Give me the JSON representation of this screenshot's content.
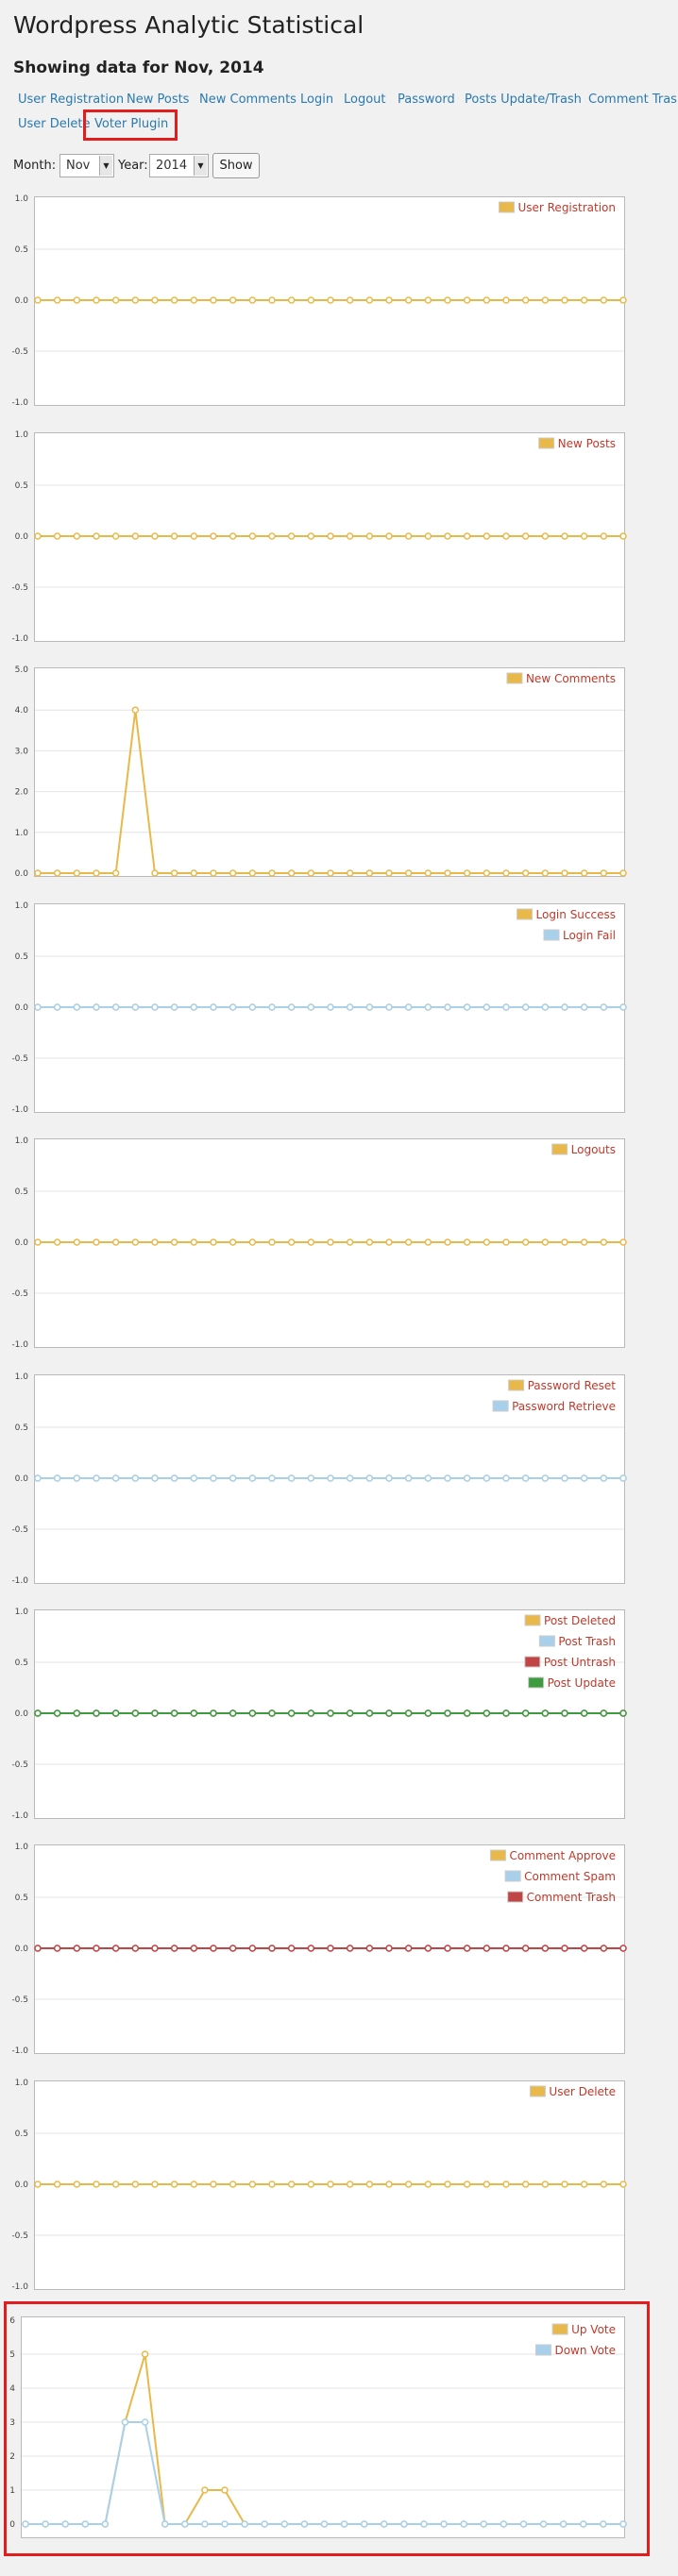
{
  "page": {
    "title": "Wordpress Analytic Statistical",
    "subtitle": "Showing data for Nov, 2014"
  },
  "nav": {
    "items": [
      {
        "label": "User Registration",
        "name": "nav-user-registration"
      },
      {
        "label": "New Posts",
        "name": "nav-new-posts"
      },
      {
        "label": "New Comments",
        "name": "nav-new-comments"
      },
      {
        "label": "Login",
        "name": "nav-login"
      },
      {
        "label": "Logout",
        "name": "nav-logout"
      },
      {
        "label": "Password",
        "name": "nav-password"
      },
      {
        "label": "Posts Update/Trash",
        "name": "nav-posts-update-trash"
      },
      {
        "label": "Comment Trash",
        "name": "nav-comment-trash"
      },
      {
        "label": "User Delete",
        "name": "nav-user-delete"
      },
      {
        "label": "Voter Plugin",
        "name": "nav-voter-plugin"
      }
    ]
  },
  "filter": {
    "month_label": "Month:",
    "month_value": "Nov",
    "year_label": "Year:",
    "year_value": "2014",
    "show_label": "Show"
  },
  "colors": {
    "yellow": "#e8b94a",
    "lightblue": "#a9d0ea",
    "red": "#c24545",
    "green": "#3f9b3f",
    "link": "#2a7ab0",
    "legend_text": "#c0392b",
    "highlight": "#e21d1d"
  },
  "chart_data": [
    {
      "type": "line",
      "yticks": [
        "1.0",
        "0.5",
        "0.0",
        "-0.5",
        "-1.0"
      ],
      "ylim": [
        -1,
        1
      ],
      "grid": true,
      "legend_position": "top-right",
      "series": [
        {
          "name": "User Registration",
          "color": "yellow",
          "values": [
            0,
            0,
            0,
            0,
            0,
            0,
            0,
            0,
            0,
            0,
            0,
            0,
            0,
            0,
            0,
            0,
            0,
            0,
            0,
            0,
            0,
            0,
            0,
            0,
            0,
            0,
            0,
            0,
            0,
            0,
            0
          ]
        }
      ]
    },
    {
      "type": "line",
      "yticks": [
        "1.0",
        "0.5",
        "0.0",
        "-0.5",
        "-1.0"
      ],
      "ylim": [
        -1,
        1
      ],
      "grid": true,
      "legend_position": "top-right",
      "series": [
        {
          "name": "New Posts",
          "color": "yellow",
          "values": [
            0,
            0,
            0,
            0,
            0,
            0,
            0,
            0,
            0,
            0,
            0,
            0,
            0,
            0,
            0,
            0,
            0,
            0,
            0,
            0,
            0,
            0,
            0,
            0,
            0,
            0,
            0,
            0,
            0,
            0,
            0
          ]
        }
      ]
    },
    {
      "type": "line",
      "yticks": [
        "5.0",
        "4.0",
        "3.0",
        "2.0",
        "1.0",
        "0.0"
      ],
      "ylim": [
        0,
        5
      ],
      "grid": true,
      "legend_position": "top-right",
      "series": [
        {
          "name": "New Comments",
          "color": "yellow",
          "values": [
            0,
            0,
            0,
            0,
            0,
            4,
            0,
            0,
            0,
            0,
            0,
            0,
            0,
            0,
            0,
            0,
            0,
            0,
            0,
            0,
            0,
            0,
            0,
            0,
            0,
            0,
            0,
            0,
            0,
            0,
            0
          ]
        }
      ]
    },
    {
      "type": "line",
      "yticks": [
        "1.0",
        "0.5",
        "0.0",
        "-0.5",
        "-1.0"
      ],
      "ylim": [
        -1,
        1
      ],
      "grid": true,
      "legend_position": "top-right",
      "series": [
        {
          "name": "Login Success",
          "color": "yellow",
          "values": [
            0,
            0,
            0,
            0,
            0,
            0,
            0,
            0,
            0,
            0,
            0,
            0,
            0,
            0,
            0,
            0,
            0,
            0,
            0,
            0,
            0,
            0,
            0,
            0,
            0,
            0,
            0,
            0,
            0,
            0,
            0
          ]
        },
        {
          "name": "Login Fail",
          "color": "lightblue",
          "values": [
            0,
            0,
            0,
            0,
            0,
            0,
            0,
            0,
            0,
            0,
            0,
            0,
            0,
            0,
            0,
            0,
            0,
            0,
            0,
            0,
            0,
            0,
            0,
            0,
            0,
            0,
            0,
            0,
            0,
            0,
            0
          ]
        }
      ]
    },
    {
      "type": "line",
      "yticks": [
        "1.0",
        "0.5",
        "0.0",
        "-0.5",
        "-1.0"
      ],
      "ylim": [
        -1,
        1
      ],
      "grid": true,
      "legend_position": "top-right",
      "series": [
        {
          "name": "Logouts",
          "color": "yellow",
          "values": [
            0,
            0,
            0,
            0,
            0,
            0,
            0,
            0,
            0,
            0,
            0,
            0,
            0,
            0,
            0,
            0,
            0,
            0,
            0,
            0,
            0,
            0,
            0,
            0,
            0,
            0,
            0,
            0,
            0,
            0,
            0
          ]
        }
      ]
    },
    {
      "type": "line",
      "yticks": [
        "1.0",
        "0.5",
        "0.0",
        "-0.5",
        "-1.0"
      ],
      "ylim": [
        -1,
        1
      ],
      "grid": true,
      "legend_position": "top-right",
      "series": [
        {
          "name": "Password Reset",
          "color": "yellow",
          "values": [
            0,
            0,
            0,
            0,
            0,
            0,
            0,
            0,
            0,
            0,
            0,
            0,
            0,
            0,
            0,
            0,
            0,
            0,
            0,
            0,
            0,
            0,
            0,
            0,
            0,
            0,
            0,
            0,
            0,
            0,
            0
          ]
        },
        {
          "name": "Password Retrieve",
          "color": "lightblue",
          "values": [
            0,
            0,
            0,
            0,
            0,
            0,
            0,
            0,
            0,
            0,
            0,
            0,
            0,
            0,
            0,
            0,
            0,
            0,
            0,
            0,
            0,
            0,
            0,
            0,
            0,
            0,
            0,
            0,
            0,
            0,
            0
          ]
        }
      ]
    },
    {
      "type": "line",
      "yticks": [
        "1.0",
        "0.5",
        "0.0",
        "-0.5",
        "-1.0"
      ],
      "ylim": [
        -1,
        1
      ],
      "grid": true,
      "legend_position": "top-right",
      "series": [
        {
          "name": "Post Deleted",
          "color": "yellow",
          "values": [
            0,
            0,
            0,
            0,
            0,
            0,
            0,
            0,
            0,
            0,
            0,
            0,
            0,
            0,
            0,
            0,
            0,
            0,
            0,
            0,
            0,
            0,
            0,
            0,
            0,
            0,
            0,
            0,
            0,
            0,
            0
          ]
        },
        {
          "name": "Post Trash",
          "color": "lightblue",
          "values": [
            0,
            0,
            0,
            0,
            0,
            0,
            0,
            0,
            0,
            0,
            0,
            0,
            0,
            0,
            0,
            0,
            0,
            0,
            0,
            0,
            0,
            0,
            0,
            0,
            0,
            0,
            0,
            0,
            0,
            0,
            0
          ]
        },
        {
          "name": "Post Untrash",
          "color": "red",
          "values": [
            0,
            0,
            0,
            0,
            0,
            0,
            0,
            0,
            0,
            0,
            0,
            0,
            0,
            0,
            0,
            0,
            0,
            0,
            0,
            0,
            0,
            0,
            0,
            0,
            0,
            0,
            0,
            0,
            0,
            0,
            0
          ]
        },
        {
          "name": "Post Update",
          "color": "green",
          "values": [
            0,
            0,
            0,
            0,
            0,
            0,
            0,
            0,
            0,
            0,
            0,
            0,
            0,
            0,
            0,
            0,
            0,
            0,
            0,
            0,
            0,
            0,
            0,
            0,
            0,
            0,
            0,
            0,
            0,
            0,
            0
          ]
        }
      ]
    },
    {
      "type": "line",
      "yticks": [
        "1.0",
        "0.5",
        "0.0",
        "-0.5",
        "-1.0"
      ],
      "ylim": [
        -1,
        1
      ],
      "grid": true,
      "legend_position": "top-right",
      "series": [
        {
          "name": "Comment Approve",
          "color": "yellow",
          "values": [
            0,
            0,
            0,
            0,
            0,
            0,
            0,
            0,
            0,
            0,
            0,
            0,
            0,
            0,
            0,
            0,
            0,
            0,
            0,
            0,
            0,
            0,
            0,
            0,
            0,
            0,
            0,
            0,
            0,
            0,
            0
          ]
        },
        {
          "name": "Comment Spam",
          "color": "lightblue",
          "values": [
            0,
            0,
            0,
            0,
            0,
            0,
            0,
            0,
            0,
            0,
            0,
            0,
            0,
            0,
            0,
            0,
            0,
            0,
            0,
            0,
            0,
            0,
            0,
            0,
            0,
            0,
            0,
            0,
            0,
            0,
            0
          ]
        },
        {
          "name": "Comment Trash",
          "color": "red",
          "values": [
            0,
            0,
            0,
            0,
            0,
            0,
            0,
            0,
            0,
            0,
            0,
            0,
            0,
            0,
            0,
            0,
            0,
            0,
            0,
            0,
            0,
            0,
            0,
            0,
            0,
            0,
            0,
            0,
            0,
            0,
            0
          ]
        }
      ]
    },
    {
      "type": "line",
      "yticks": [
        "1.0",
        "0.5",
        "0.0",
        "-0.5",
        "-1.0"
      ],
      "ylim": [
        -1,
        1
      ],
      "grid": true,
      "legend_position": "top-right",
      "series": [
        {
          "name": "User Delete",
          "color": "yellow",
          "values": [
            0,
            0,
            0,
            0,
            0,
            0,
            0,
            0,
            0,
            0,
            0,
            0,
            0,
            0,
            0,
            0,
            0,
            0,
            0,
            0,
            0,
            0,
            0,
            0,
            0,
            0,
            0,
            0,
            0,
            0,
            0
          ]
        }
      ]
    },
    {
      "type": "line",
      "yticks": [
        "6",
        "5",
        "4",
        "3",
        "2",
        "1",
        "0"
      ],
      "ylim": [
        0,
        6
      ],
      "grid": true,
      "legend_position": "top-right",
      "series": [
        {
          "name": "Up Vote",
          "color": "yellow",
          "values": [
            0,
            0,
            0,
            0,
            0,
            3,
            5,
            0,
            0,
            1,
            1,
            0,
            0,
            0,
            0,
            0,
            0,
            0,
            0,
            0,
            0,
            0,
            0,
            0,
            0,
            0,
            0,
            0,
            0,
            0,
            0
          ]
        },
        {
          "name": "Down Vote",
          "color": "lightblue",
          "values": [
            0,
            0,
            0,
            0,
            0,
            3,
            3,
            0,
            0,
            0,
            0,
            0,
            0,
            0,
            0,
            0,
            0,
            0,
            0,
            0,
            0,
            0,
            0,
            0,
            0,
            0,
            0,
            0,
            0,
            0,
            0
          ]
        }
      ]
    }
  ]
}
